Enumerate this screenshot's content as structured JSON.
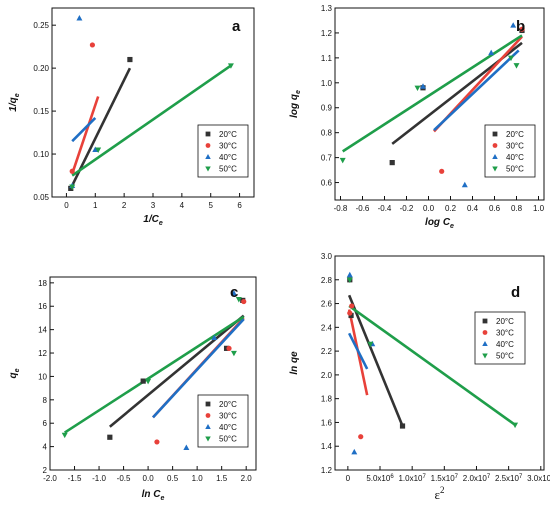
{
  "figure": {
    "colors": {
      "20": "#333333",
      "30": "#e8413a",
      "40": "#1f6fc5",
      "50": "#1f9e4a"
    },
    "legend_labels": [
      "20°C",
      "30°C",
      "40°C",
      "50°C"
    ]
  },
  "chart_data": [
    {
      "panel": "a",
      "type": "scatter",
      "xlabel": "1/C",
      "xlabel_sub": "e",
      "ylabel": "1/q",
      "ylabel_sub": "e",
      "xlim": [
        -0.5,
        6.5
      ],
      "ylim": [
        0.05,
        0.27
      ],
      "xticks": [
        0,
        1,
        2,
        3,
        4,
        5,
        6
      ],
      "xtick_labels": [
        "0",
        "1",
        "2",
        "3",
        "4",
        "5",
        "6"
      ],
      "yticks": [
        0.05,
        0.1,
        0.15,
        0.2,
        0.25
      ],
      "ytick_labels": [
        "0.05",
        "0.10",
        "0.15",
        "0.20",
        "0.25"
      ],
      "series": [
        {
          "name": "20°C",
          "key": "20",
          "marker": "square",
          "points": [
            [
              0.15,
              0.06
            ],
            [
              2.2,
              0.21
            ]
          ],
          "fit": [
            [
              0.15,
              0.06
            ],
            [
              2.2,
              0.2
            ]
          ]
        },
        {
          "name": "30°C",
          "key": "30",
          "marker": "circle",
          "points": [
            [
              0.2,
              0.08
            ],
            [
              0.9,
              0.227
            ]
          ],
          "fit": [
            [
              0.2,
              0.077
            ],
            [
              1.1,
              0.167
            ]
          ]
        },
        {
          "name": "40°C",
          "key": "40",
          "marker": "triangle-up",
          "points": [
            [
              0.2,
              0.063
            ],
            [
              1.0,
              0.105
            ],
            [
              0.45,
              0.258
            ]
          ],
          "fit": [
            [
              0.2,
              0.115
            ],
            [
              1.0,
              0.142
            ]
          ]
        },
        {
          "name": "50°C",
          "key": "50",
          "marker": "triangle-down",
          "points": [
            [
              0.2,
              0.062
            ],
            [
              1.1,
              0.105
            ],
            [
              5.7,
              0.203
            ]
          ],
          "fit": [
            [
              0.2,
              0.075
            ],
            [
              5.7,
              0.203
            ]
          ]
        }
      ]
    },
    {
      "panel": "b",
      "type": "scatter",
      "xlabel": "log C",
      "xlabel_sub": "e",
      "ylabel": "log q",
      "ylabel_sub": "e",
      "xlim": [
        -0.85,
        1.05
      ],
      "ylim": [
        0.53,
        1.3
      ],
      "xticks": [
        -0.8,
        -0.6,
        -0.4,
        -0.2,
        0.0,
        0.2,
        0.4,
        0.6,
        0.8,
        1.0
      ],
      "xtick_labels": [
        "-0.8",
        "-0.6",
        "-0.4",
        "-0.2",
        "0.0",
        "0.2",
        "0.4",
        "0.6",
        "0.8",
        "1.0"
      ],
      "yticks": [
        0.6,
        0.7,
        0.8,
        0.9,
        1.0,
        1.1,
        1.2,
        1.3
      ],
      "ytick_labels": [
        "0.6",
        "0.7",
        "0.8",
        "0.9",
        "1.0",
        "1.1",
        "1.2",
        "1.3"
      ],
      "series": [
        {
          "name": "20°C",
          "key": "20",
          "marker": "square",
          "points": [
            [
              -0.33,
              0.68
            ],
            [
              -0.05,
              0.98
            ],
            [
              0.85,
              1.21
            ]
          ],
          "fit": [
            [
              -0.33,
              0.755
            ],
            [
              0.85,
              1.16
            ]
          ]
        },
        {
          "name": "30°C",
          "key": "30",
          "marker": "circle",
          "points": [
            [
              0.12,
              0.645
            ],
            [
              0.85,
              1.215
            ]
          ],
          "fit": [
            [
              0.05,
              0.805
            ],
            [
              0.85,
              1.185
            ]
          ]
        },
        {
          "name": "40°C",
          "key": "40",
          "marker": "triangle-up",
          "points": [
            [
              0.33,
              0.59
            ],
            [
              -0.05,
              0.985
            ],
            [
              0.57,
              1.12
            ],
            [
              0.77,
              1.23
            ]
          ],
          "fit": [
            [
              0.05,
              0.81
            ],
            [
              0.82,
              1.13
            ]
          ]
        },
        {
          "name": "50°C",
          "key": "50",
          "marker": "triangle-down",
          "points": [
            [
              -0.78,
              0.69
            ],
            [
              -0.1,
              0.98
            ],
            [
              0.75,
              1.1
            ],
            [
              0.8,
              1.07
            ]
          ],
          "fit": [
            [
              -0.78,
              0.725
            ],
            [
              0.85,
              1.19
            ]
          ]
        }
      ]
    },
    {
      "panel": "c",
      "type": "scatter",
      "xlabel": "ln C",
      "xlabel_sub": "e",
      "ylabel": "q",
      "ylabel_sub": "e",
      "xlim": [
        -2.0,
        2.2
      ],
      "ylim": [
        2,
        18.5
      ],
      "xticks": [
        -2.0,
        -1.5,
        -1.0,
        -0.5,
        0.0,
        0.5,
        1.0,
        1.5,
        2.0
      ],
      "xtick_labels": [
        "-2.0",
        "-1.5",
        "-1.0",
        "-0.5",
        "0.0",
        "0.5",
        "1.0",
        "1.5",
        "2.0"
      ],
      "yticks": [
        2,
        4,
        6,
        8,
        10,
        12,
        14,
        16,
        18
      ],
      "ytick_labels": [
        "2",
        "4",
        "6",
        "8",
        "10",
        "12",
        "14",
        "16",
        "18"
      ],
      "series": [
        {
          "name": "20°C",
          "key": "20",
          "marker": "square",
          "points": [
            [
              -0.78,
              4.8
            ],
            [
              -0.1,
              9.6
            ],
            [
              1.6,
              12.4
            ],
            [
              1.93,
              16.5
            ]
          ],
          "fit": [
            [
              -0.78,
              5.7
            ],
            [
              1.95,
              15.2
            ]
          ]
        },
        {
          "name": "30°C",
          "key": "30",
          "marker": "circle",
          "points": [
            [
              0.18,
              4.4
            ],
            [
              1.65,
              12.4
            ],
            [
              1.95,
              16.4
            ]
          ],
          "fit": [
            [
              0.1,
              6.5
            ],
            [
              1.95,
              15.0
            ]
          ]
        },
        {
          "name": "40°C",
          "key": "40",
          "marker": "triangle-up",
          "points": [
            [
              0.78,
              3.9
            ],
            [
              1.35,
              13.3
            ],
            [
              1.75,
              17.1
            ]
          ],
          "fit": [
            [
              0.1,
              6.5
            ],
            [
              1.95,
              14.9
            ]
          ]
        },
        {
          "name": "50°C",
          "key": "50",
          "marker": "triangle-down",
          "points": [
            [
              -1.7,
              5.0
            ],
            [
              0.0,
              9.6
            ],
            [
              1.75,
              12.0
            ],
            [
              1.85,
              16.6
            ]
          ],
          "fit": [
            [
              -1.7,
              5.2
            ],
            [
              1.95,
              15.1
            ]
          ]
        }
      ]
    },
    {
      "panel": "d",
      "type": "scatter",
      "xlabel": "ε",
      "xlabel_sup": "2",
      "ylabel": "ln qe",
      "xlim": [
        -2000000.0,
        30500000.0
      ],
      "ylim": [
        1.2,
        3.0
      ],
      "xticks": [
        0,
        5000000.0,
        10000000.0,
        15000000.0,
        20000000.0,
        25000000.0,
        30000000.0
      ],
      "xtick_labels": [
        "0",
        "5.0x10",
        "1.0x10",
        "1.5x10",
        "2.0x10",
        "2.5x10",
        "3.0x10"
      ],
      "xtick_sups": [
        "",
        "6",
        "7",
        "7",
        "7",
        "7",
        "7"
      ],
      "yticks": [
        1.2,
        1.4,
        1.6,
        1.8,
        2.0,
        2.2,
        2.4,
        2.6,
        2.8,
        3.0
      ],
      "ytick_labels": [
        "1.2",
        "1.4",
        "1.6",
        "1.8",
        "2.0",
        "2.2",
        "2.4",
        "2.6",
        "2.8",
        "3.0"
      ],
      "series": [
        {
          "name": "20°C",
          "key": "20",
          "marker": "square",
          "points": [
            [
              300000.0,
              2.8
            ],
            [
              500000.0,
              2.5
            ],
            [
              8500000.0,
              1.57
            ]
          ],
          "fit": [
            [
              200000.0,
              2.67
            ],
            [
              8500000.0,
              1.57
            ]
          ]
        },
        {
          "name": "30°C",
          "key": "30",
          "marker": "circle",
          "points": [
            [
              300000.0,
              2.52
            ],
            [
              600000.0,
              2.58
            ],
            [
              2000000.0,
              1.48
            ]
          ],
          "fit": [
            [
              200000.0,
              2.55
            ],
            [
              3000000.0,
              1.83
            ]
          ]
        },
        {
          "name": "40°C",
          "key": "40",
          "marker": "triangle-up",
          "points": [
            [
              300000.0,
              2.84
            ],
            [
              1000000.0,
              1.35
            ],
            [
              3800000.0,
              2.26
            ]
          ],
          "fit": [
            [
              200000.0,
              2.35
            ],
            [
              3000000.0,
              2.05
            ]
          ]
        },
        {
          "name": "50°C",
          "key": "50",
          "marker": "triangle-down",
          "points": [
            [
              300000.0,
              2.8
            ],
            [
              3500000.0,
              2.26
            ],
            [
              26000000.0,
              1.58
            ]
          ],
          "fit": [
            [
              200000.0,
              2.58
            ],
            [
              26000000.0,
              1.58
            ]
          ]
        }
      ]
    }
  ]
}
